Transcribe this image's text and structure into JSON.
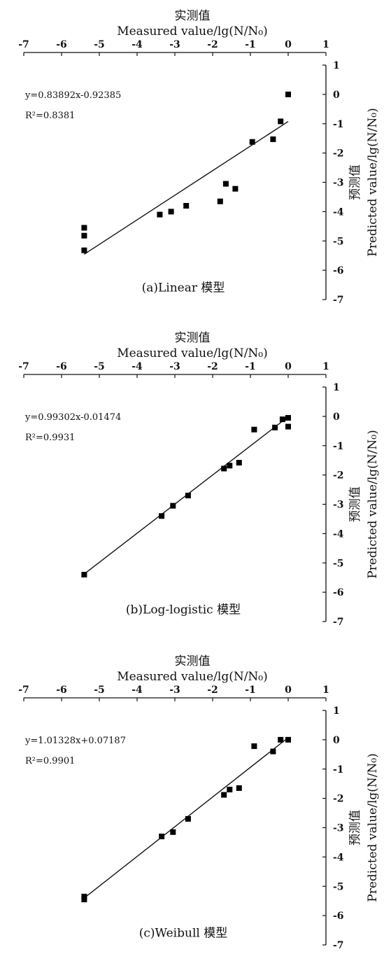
{
  "chart_data": [
    {
      "type": "scatter",
      "x_title_cn": "实测值",
      "x_title_en": "Measured value/lg(N/N₀)",
      "y_title_cn": "预测值",
      "y_title_en": "Predicted value/lg(N/N₀)",
      "caption": "(a)Linear 模型",
      "equation": "y=0.83892x-0.92385",
      "r2": "R²=0.8381",
      "fit": {
        "slope": 0.83892,
        "intercept": -0.92385,
        "x_range": [
          -5.4,
          0
        ]
      },
      "xlim": [
        -7,
        1
      ],
      "ylim": [
        -7,
        1
      ],
      "x_ticks": [
        "-7",
        "-6",
        "-5",
        "-4",
        "-3",
        "-2",
        "-1",
        "0",
        "1"
      ],
      "y_ticks": [
        "1",
        "0",
        "-1",
        "-2",
        "-3",
        "-4",
        "-5",
        "-6",
        "-7"
      ],
      "points": [
        {
          "x": -5.4,
          "y": -4.55
        },
        {
          "x": -5.4,
          "y": -4.82
        },
        {
          "x": -5.4,
          "y": -5.32
        },
        {
          "x": -3.4,
          "y": -4.1
        },
        {
          "x": -3.1,
          "y": -4.0
        },
        {
          "x": -2.7,
          "y": -3.8
        },
        {
          "x": -1.8,
          "y": -3.65
        },
        {
          "x": -1.65,
          "y": -3.05
        },
        {
          "x": -1.4,
          "y": -3.22
        },
        {
          "x": -0.95,
          "y": -1.62
        },
        {
          "x": -0.4,
          "y": -1.53
        },
        {
          "x": -0.2,
          "y": -0.92
        },
        {
          "x": 0.0,
          "y": 0.0
        }
      ]
    },
    {
      "type": "scatter",
      "x_title_cn": "实测值",
      "x_title_en": "Measured value/lg(N/N₀)",
      "y_title_cn": "预测值",
      "y_title_en": "Predicted value/lg(N/N₀)",
      "caption": "(b)Log-logistic 模型",
      "equation": "y=0.99302x-0.01474",
      "r2": "R²=0.9931",
      "fit": {
        "slope": 0.99302,
        "intercept": -0.01474,
        "x_range": [
          -5.4,
          0
        ]
      },
      "xlim": [
        -7,
        1
      ],
      "ylim": [
        -7,
        1
      ],
      "x_ticks": [
        "-7",
        "-6",
        "-5",
        "-4",
        "-3",
        "-2",
        "-1",
        "0",
        "1"
      ],
      "y_ticks": [
        "1",
        "0",
        "-1",
        "-2",
        "-3",
        "-4",
        "-5",
        "-6",
        "-7"
      ],
      "points": [
        {
          "x": -5.4,
          "y": -5.4
        },
        {
          "x": -3.35,
          "y": -3.4
        },
        {
          "x": -3.05,
          "y": -3.05
        },
        {
          "x": -2.65,
          "y": -2.7
        },
        {
          "x": -1.7,
          "y": -1.78
        },
        {
          "x": -1.55,
          "y": -1.68
        },
        {
          "x": -1.3,
          "y": -1.58
        },
        {
          "x": -0.9,
          "y": -0.45
        },
        {
          "x": -0.35,
          "y": -0.38
        },
        {
          "x": -0.15,
          "y": -0.1
        },
        {
          "x": 0.0,
          "y": -0.05
        },
        {
          "x": 0.0,
          "y": -0.35
        }
      ]
    },
    {
      "type": "scatter",
      "x_title_cn": "实测值",
      "x_title_en": "Measured value/lg(N/N₀)",
      "y_title_cn": "预测值",
      "y_title_en": "Predicted value/lg(N/N₀)",
      "caption": "(c)Weibull 模型",
      "equation": "y=1.01328x+0.07187",
      "r2": "R²=0.9901",
      "fit": {
        "slope": 1.01328,
        "intercept": 0.07187,
        "x_range": [
          -5.4,
          0
        ]
      },
      "xlim": [
        -7,
        1
      ],
      "ylim": [
        -7,
        1
      ],
      "x_ticks": [
        "-7",
        "-6",
        "-5",
        "-4",
        "-3",
        "-2",
        "-1",
        "0",
        "1"
      ],
      "y_ticks": [
        "1",
        "0",
        "-1",
        "-2",
        "-3",
        "-4",
        "-5",
        "-6",
        "-7"
      ],
      "points": [
        {
          "x": -5.4,
          "y": -5.35
        },
        {
          "x": -5.4,
          "y": -5.45
        },
        {
          "x": -3.35,
          "y": -3.3
        },
        {
          "x": -3.05,
          "y": -3.15
        },
        {
          "x": -2.65,
          "y": -2.7
        },
        {
          "x": -1.7,
          "y": -1.88
        },
        {
          "x": -1.55,
          "y": -1.7
        },
        {
          "x": -1.3,
          "y": -1.65
        },
        {
          "x": -0.9,
          "y": -0.22
        },
        {
          "x": -0.4,
          "y": -0.4
        },
        {
          "x": -0.2,
          "y": 0.0
        },
        {
          "x": 0.0,
          "y": 0.0
        }
      ]
    }
  ]
}
